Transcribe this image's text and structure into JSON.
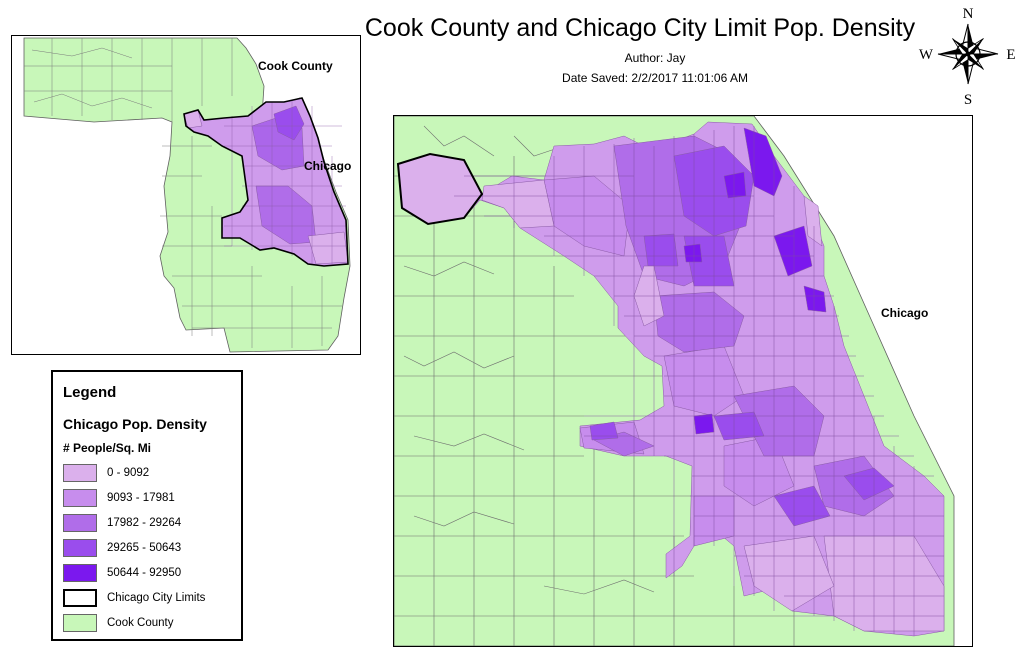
{
  "map": {
    "title": "Cook County and Chicago City Limit Pop. Density",
    "author": "Author: Jay",
    "date_saved": "Date Saved: 2/2/2017 11:01:06 AM"
  },
  "inset_map": {
    "labels": {
      "county": "Cook County",
      "city": "Chicago"
    }
  },
  "main_map": {
    "labels": {
      "city": "Chicago"
    }
  },
  "legend": {
    "title": "Legend",
    "layer": "Chicago Pop. Density",
    "field": "# People/Sq. Mi",
    "classes": [
      {
        "label": "0 - 9092",
        "color": "#dbb0ec"
      },
      {
        "label": "9093 - 17981",
        "color": "#c78ded"
      },
      {
        "label": "17982 - 29264",
        "color": "#b06de9"
      },
      {
        "label": "29265 - 50643",
        "color": "#9a4ded"
      },
      {
        "label": "50644 - 92950",
        "color": "#7b18ee"
      }
    ],
    "city_limits": {
      "label": "Chicago City Limits",
      "stroke": "#000000"
    },
    "county": {
      "label": "Cook County",
      "color": "#c8f7b9"
    }
  },
  "compass": {
    "n": "N",
    "e": "E",
    "s": "S",
    "w": "W"
  }
}
